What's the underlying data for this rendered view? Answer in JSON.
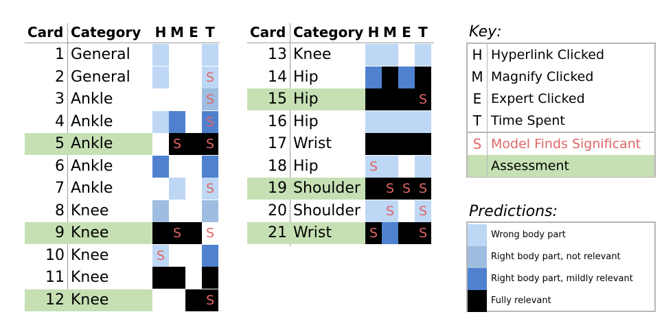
{
  "colors": {
    "wrong_body_part": "#bdd7f5",
    "right_body_part_not_relevant": "#9fbde0",
    "right_body_part_mildly_relevant": "#4f81cf",
    "fully_relevant": "#000000",
    "significant": "#e06666",
    "assessment": "#c6e0b4"
  },
  "headers": {
    "card": "Card",
    "category": "Category",
    "h": "H",
    "m": "M",
    "e": "E",
    "t": "T"
  },
  "left_table": [
    {
      "card": "1",
      "category": "General",
      "assessment": false,
      "h": "wrong",
      "m": null,
      "e": null,
      "t": "wrong",
      "sig": []
    },
    {
      "card": "2",
      "category": "General",
      "assessment": false,
      "h": "wrong",
      "m": null,
      "e": null,
      "t": "wrong",
      "sig": [
        "t"
      ]
    },
    {
      "card": "3",
      "category": "Ankle",
      "assessment": false,
      "h": null,
      "m": null,
      "e": null,
      "t": "notrel",
      "sig": [
        "t"
      ]
    },
    {
      "card": "4",
      "category": "Ankle",
      "assessment": false,
      "h": "wrong",
      "m": "mild",
      "e": null,
      "t": "mild",
      "sig": [
        "t"
      ]
    },
    {
      "card": "5",
      "category": "Ankle",
      "assessment": true,
      "h": null,
      "m": "full",
      "e": "full",
      "t": "full",
      "sig": [
        "m",
        "t"
      ]
    },
    {
      "card": "6",
      "category": "Ankle",
      "assessment": false,
      "h": "mild",
      "m": null,
      "e": null,
      "t": "mild",
      "sig": []
    },
    {
      "card": "7",
      "category": "Ankle",
      "assessment": false,
      "h": null,
      "m": "wrong",
      "e": null,
      "t": "wrong",
      "sig": [
        "t"
      ]
    },
    {
      "card": "8",
      "category": "Knee",
      "assessment": false,
      "h": "notrel",
      "m": null,
      "e": null,
      "t": "notrel",
      "sig": []
    },
    {
      "card": "9",
      "category": "Knee",
      "assessment": true,
      "h": "full",
      "m": "full",
      "e": "full",
      "t": null,
      "sig": [
        "m",
        "t"
      ]
    },
    {
      "card": "10",
      "category": "Knee",
      "assessment": false,
      "h": "wrong",
      "m": null,
      "e": null,
      "t": "mild",
      "sig": [
        "h"
      ]
    },
    {
      "card": "11",
      "category": "Knee",
      "assessment": false,
      "h": "full",
      "m": "full",
      "e": null,
      "t": "full",
      "sig": []
    },
    {
      "card": "12",
      "category": "Knee",
      "assessment": true,
      "h": null,
      "m": null,
      "e": "full",
      "t": "full",
      "sig": [
        "t"
      ]
    }
  ],
  "right_table": [
    {
      "card": "13",
      "category": "Knee",
      "assessment": false,
      "h": "wrong",
      "m": "wrong",
      "e": null,
      "t": "wrong",
      "sig": []
    },
    {
      "card": "14",
      "category": "Hip",
      "assessment": false,
      "h": "mild",
      "m": "full",
      "e": "mild",
      "t": "full",
      "sig": []
    },
    {
      "card": "15",
      "category": "Hip",
      "assessment": true,
      "h": "full",
      "m": "full",
      "e": "full",
      "t": "full",
      "sig": [
        "t"
      ]
    },
    {
      "card": "16",
      "category": "Hip",
      "assessment": false,
      "h": "wrong",
      "m": "wrong",
      "e": "wrong",
      "t": "wrong",
      "sig": []
    },
    {
      "card": "17",
      "category": "Wrist",
      "assessment": false,
      "h": "full",
      "m": "full",
      "e": "full",
      "t": "full",
      "sig": []
    },
    {
      "card": "18",
      "category": "Hip",
      "assessment": false,
      "h": "wrong",
      "m": "wrong",
      "e": null,
      "t": "wrong",
      "sig": [
        "h"
      ]
    },
    {
      "card": "19",
      "category": "Shoulder",
      "assessment": true,
      "h": "full",
      "m": "full",
      "e": "full",
      "t": "full",
      "sig": [
        "m",
        "e",
        "t"
      ]
    },
    {
      "card": "20",
      "category": "Shoulder",
      "assessment": false,
      "h": "wrong",
      "m": "wrong",
      "e": null,
      "t": "wrong",
      "sig": [
        "m",
        "t"
      ]
    },
    {
      "card": "21",
      "category": "Wrist",
      "assessment": true,
      "h": "full",
      "m": "mild",
      "e": "full",
      "t": "full",
      "sig": [
        "h",
        "t"
      ]
    }
  ],
  "sig_symbol": "S",
  "key": {
    "title": "Key:",
    "items": [
      {
        "letter": "H",
        "label": "Hyperlink Clicked"
      },
      {
        "letter": "M",
        "label": "Magnify Clicked"
      },
      {
        "letter": "E",
        "label": "Expert Clicked"
      },
      {
        "letter": "T",
        "label": "Time Spent"
      }
    ],
    "significant": {
      "letter": "S",
      "label": "Model Finds Significant"
    },
    "assessment_label": "Assessment"
  },
  "predictions": {
    "title": "Predictions:",
    "items": [
      {
        "level": "wrong",
        "label": "Wrong body part"
      },
      {
        "level": "notrel",
        "label": "Right body part, not relevant"
      },
      {
        "level": "mild",
        "label": "Right body part, mildly relevant"
      },
      {
        "level": "full",
        "label": "Fully relevant"
      }
    ]
  }
}
